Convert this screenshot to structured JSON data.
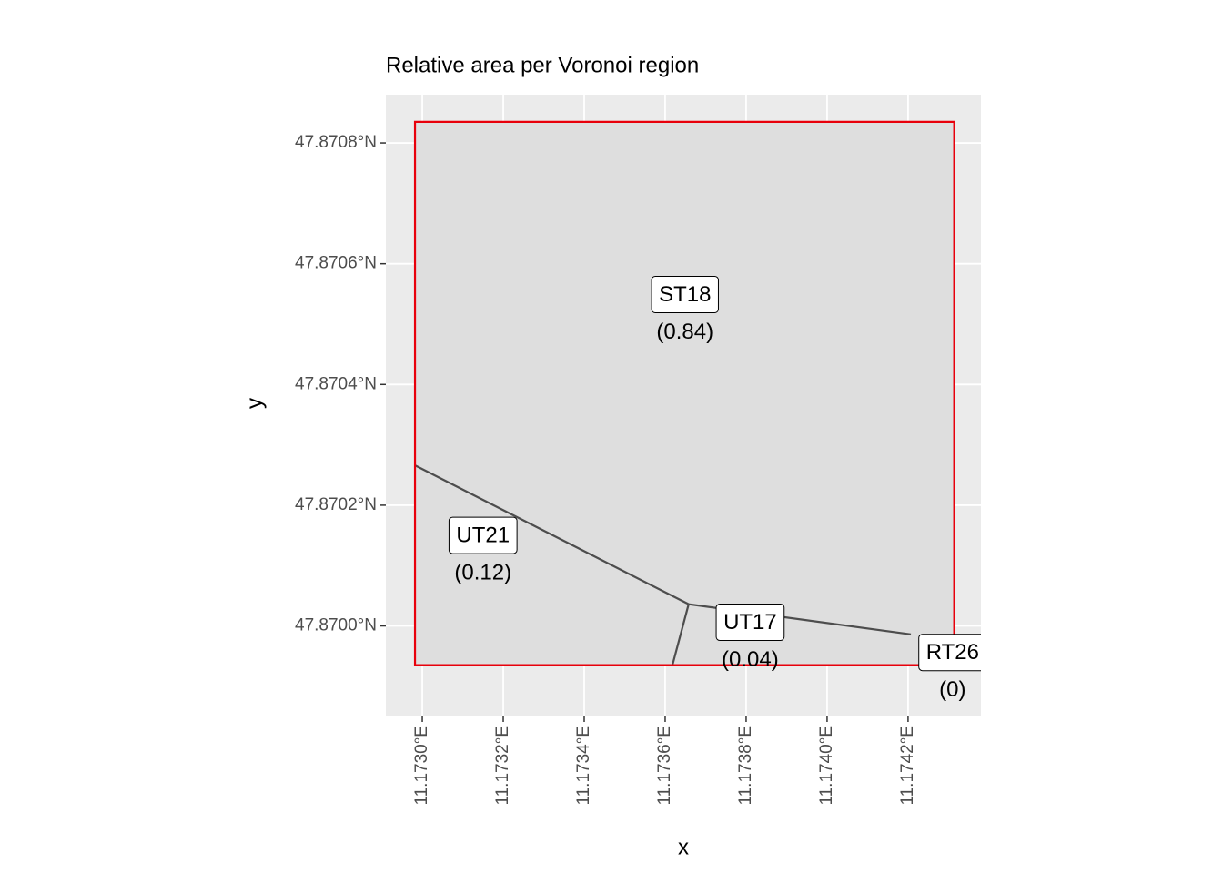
{
  "chart_data": {
    "type": "map",
    "title": "Relative area per Voronoi region",
    "xlabel": "x",
    "ylabel": "y",
    "xlim": [
      11.17291,
      11.17438
    ],
    "ylim": [
      47.86985,
      47.87088
    ],
    "xticks": [
      {
        "value": 11.173,
        "label": "11.1730°E"
      },
      {
        "value": 11.1732,
        "label": "11.1732°E"
      },
      {
        "value": 11.1734,
        "label": "11.1734°E"
      },
      {
        "value": 11.1736,
        "label": "11.1736°E"
      },
      {
        "value": 11.1738,
        "label": "11.1738°E"
      },
      {
        "value": 11.174,
        "label": "11.1740°E"
      },
      {
        "value": 11.1742,
        "label": "11.1742°E"
      }
    ],
    "yticks": [
      {
        "value": 47.8708,
        "label": "47.8708°N"
      },
      {
        "value": 47.8706,
        "label": "47.8706°N"
      },
      {
        "value": 47.8704,
        "label": "47.8704°N"
      },
      {
        "value": 47.8702,
        "label": "47.8702°N"
      },
      {
        "value": 47.87,
        "label": "47.8700°N"
      }
    ],
    "grid": true,
    "boundary": {
      "color": "#e8000b",
      "fill": "#dedede",
      "lon": [
        11.172982,
        11.174314,
        11.174314,
        11.172982
      ],
      "lat": [
        47.870835,
        47.870835,
        47.869935,
        47.869935
      ]
    },
    "edges": [
      {
        "lon": [
          11.172982,
          11.173658
        ],
        "lat": [
          47.870266,
          47.870036
        ]
      },
      {
        "lon": [
          11.173658,
          11.174207
        ],
        "lat": [
          47.870036,
          47.869986
        ]
      },
      {
        "lon": [
          11.173658,
          11.173618
        ],
        "lat": [
          47.870036,
          47.869935
        ]
      }
    ],
    "edge_color": "#4d4d4d",
    "categories": [
      "ST18",
      "UT21",
      "UT17",
      "RT26"
    ],
    "values": [
      0.84,
      0.12,
      0.04,
      0
    ],
    "value_labels": [
      "(0.84)",
      "(0.12)",
      "(0.04)",
      "(0)"
    ],
    "label_lon": [
      11.173649,
      11.17315,
      11.17381,
      11.17431
    ],
    "label_lat": [
      47.870549,
      47.87015,
      47.870006,
      47.869956
    ]
  }
}
